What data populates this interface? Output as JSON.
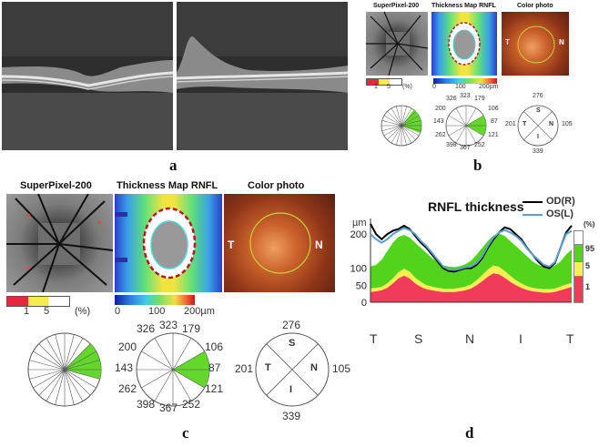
{
  "panels": {
    "a": "a",
    "b": "b",
    "c": "c",
    "d": "d"
  },
  "labels": {
    "superpixel": "SuperPixel-200",
    "thickness_map": "Thickness Map RNFL",
    "color_photo": "Color photo",
    "pct_1": "1",
    "pct_5": "5",
    "pct_unit": "(%)",
    "scale_0": "0",
    "scale_100": "100",
    "scale_200": "200µm",
    "fundus_T": "T",
    "fundus_N": "N"
  },
  "clock_values": {
    "v326": "326",
    "v323": "323",
    "v179": "179",
    "v200": "200",
    "v106": "106",
    "v143": "143",
    "v87": "87",
    "v262": "262",
    "v121": "121",
    "v398": "398",
    "v367": "367",
    "v252": "252"
  },
  "quadrant_values": {
    "S": "276",
    "T": "201",
    "N": "105",
    "I": "339",
    "S_letter": "S",
    "T_letter": "T",
    "N_letter": "N",
    "I_letter": "I"
  },
  "chart_data": {
    "type": "area",
    "title": "RNFL thickness",
    "ylabel": "µm",
    "x_tick_labels": [
      "T",
      "S",
      "N",
      "I",
      "T"
    ],
    "y_tick_labels": [
      "0",
      "50",
      "100",
      "200"
    ],
    "ylim": [
      0,
      230
    ],
    "x": [
      0,
      10,
      20,
      30,
      40,
      50,
      60,
      70,
      80,
      90,
      100,
      110,
      120,
      130,
      140,
      150,
      160,
      170,
      180,
      190,
      200,
      210,
      220,
      230,
      240,
      250,
      260,
      270,
      280,
      290,
      300,
      310,
      320,
      330,
      340,
      350,
      360
    ],
    "series": [
      {
        "name": "OD(R)",
        "color": "#000000",
        "values": [
          230,
          200,
          185,
          200,
          210,
          215,
          225,
          215,
          195,
          175,
          160,
          140,
          120,
          100,
          92,
          90,
          95,
          100,
          100,
          110,
          130,
          160,
          185,
          205,
          220,
          215,
          200,
          185,
          160,
          140,
          120,
          105,
          100,
          115,
          160,
          205,
          225
        ]
      },
      {
        "name": "OS(L)",
        "color": "#5a9fd0",
        "values": [
          200,
          185,
          175,
          185,
          200,
          210,
          218,
          212,
          200,
          180,
          165,
          145,
          125,
          105,
          96,
          95,
          98,
          103,
          105,
          115,
          135,
          165,
          190,
          205,
          212,
          205,
          195,
          180,
          158,
          140,
          125,
          110,
          105,
          118,
          160,
          200,
          210
        ]
      }
    ],
    "normative_bands": {
      "legend": [
        "95",
        "5",
        "1"
      ],
      "legend_unit": "(%)",
      "colors": {
        "p95": "#52d41c",
        "p5": "#f6f050",
        "p1": "#f03c5a",
        "above": "#ffffff"
      },
      "p1_upper": [
        30,
        32,
        35,
        42,
        55,
        70,
        78,
        70,
        55,
        45,
        38,
        35,
        32,
        30,
        30,
        30,
        32,
        35,
        40,
        50,
        62,
        75,
        85,
        82,
        72,
        60,
        50,
        42,
        36,
        32,
        30,
        28,
        28,
        30,
        35,
        40,
        45
      ],
      "p5_upper": [
        40,
        42,
        45,
        55,
        70,
        88,
        98,
        90,
        72,
        60,
        50,
        46,
        42,
        40,
        40,
        40,
        42,
        46,
        52,
        65,
        80,
        96,
        108,
        104,
        92,
        78,
        65,
        55,
        47,
        42,
        40,
        38,
        38,
        40,
        46,
        52,
        56
      ],
      "p95_upper": [
        105,
        110,
        125,
        150,
        175,
        192,
        198,
        190,
        175,
        160,
        145,
        130,
        118,
        108,
        105,
        103,
        106,
        112,
        122,
        140,
        160,
        180,
        196,
        202,
        195,
        180,
        165,
        150,
        135,
        120,
        110,
        105,
        103,
        108,
        120,
        140,
        155
      ]
    }
  }
}
